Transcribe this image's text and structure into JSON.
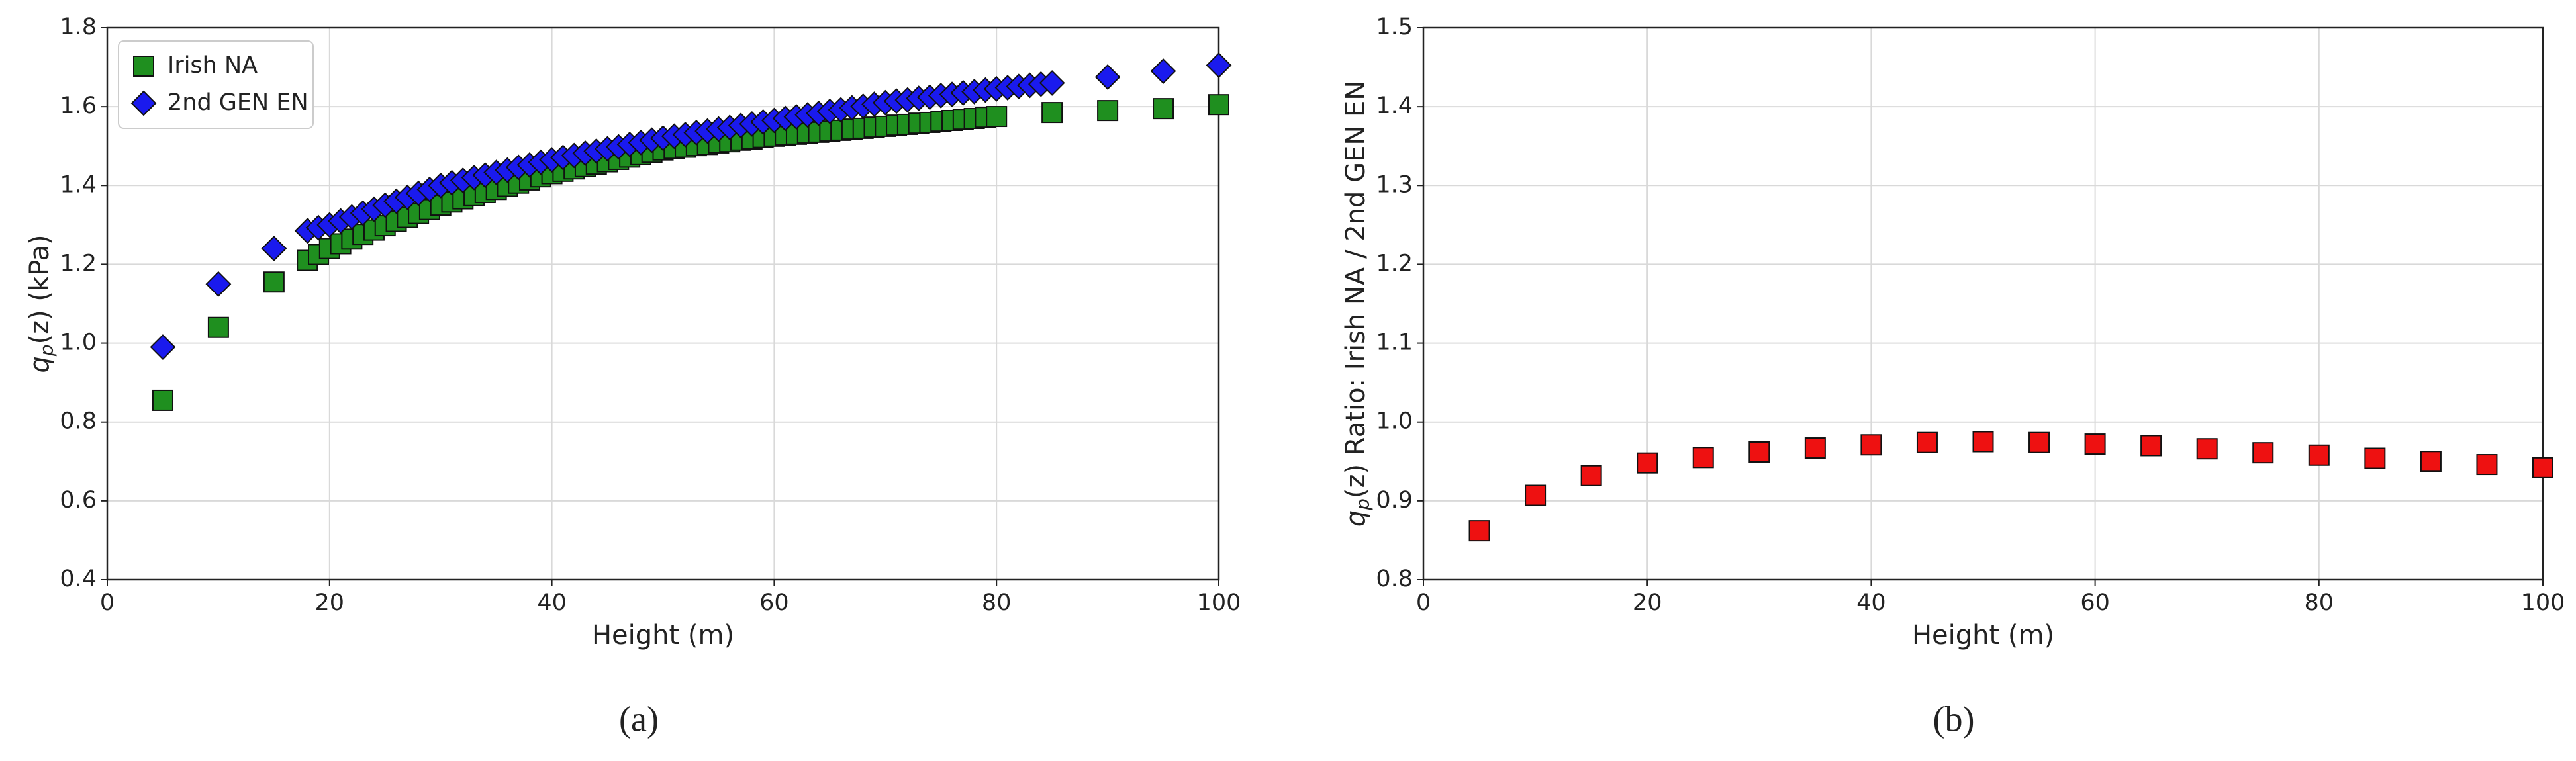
{
  "chart_data": [
    {
      "type": "scatter",
      "caption": "(a)",
      "x_label": "Height (m)",
      "y_label_symbol": "q",
      "y_label_subscript": "p",
      "y_label_rest": "(z) (kPa)",
      "xlim": [
        0,
        100
      ],
      "xticks": [
        0,
        20,
        40,
        60,
        80,
        100
      ],
      "ylim": [
        0.4,
        1.8
      ],
      "yticks": [
        0.4,
        0.6,
        0.8,
        {
          "value": 1,
          "label": "1.0"
        },
        1.2,
        1.4,
        1.6,
        1.8
      ],
      "grid": true,
      "legend": "upper left",
      "series": [
        {
          "name": "Irish NA",
          "color": "#1f8f1f",
          "marker": "square",
          "x": [
            5,
            10,
            15,
            18,
            19,
            20,
            21,
            22,
            23,
            24,
            25,
            26,
            27,
            28,
            29,
            30,
            31,
            32,
            33,
            34,
            35,
            36,
            37,
            38,
            39,
            40,
            41,
            42,
            43,
            44,
            45,
            46,
            47,
            48,
            49,
            50,
            51,
            52,
            53,
            54,
            55,
            56,
            57,
            58,
            59,
            60,
            61,
            62,
            63,
            64,
            65,
            66,
            67,
            68,
            69,
            70,
            71,
            72,
            73,
            74,
            75,
            76,
            77,
            78,
            79,
            80,
            85,
            90,
            95,
            100
          ],
          "values": [
            0.855,
            1.04,
            1.155,
            1.21,
            1.225,
            1.24,
            1.252,
            1.264,
            1.276,
            1.287,
            1.298,
            1.309,
            1.319,
            1.329,
            1.339,
            1.35,
            1.358,
            1.366,
            1.374,
            1.382,
            1.39,
            1.398,
            1.406,
            1.414,
            1.422,
            1.43,
            1.436,
            1.442,
            1.448,
            1.454,
            1.46,
            1.466,
            1.472,
            1.478,
            1.484,
            1.49,
            1.494,
            1.497,
            1.501,
            1.504,
            1.508,
            1.511,
            1.515,
            1.518,
            1.522,
            1.525,
            1.528,
            1.53,
            1.533,
            1.535,
            1.538,
            1.54,
            1.543,
            1.545,
            1.548,
            1.55,
            1.553,
            1.555,
            1.558,
            1.56,
            1.563,
            1.565,
            1.568,
            1.57,
            1.573,
            1.575,
            1.585,
            1.59,
            1.595,
            1.605
          ]
        },
        {
          "name": "2nd GEN EN",
          "color": "#1a1aee",
          "marker": "diamond",
          "x": [
            5,
            10,
            15,
            18,
            19,
            20,
            21,
            22,
            23,
            24,
            25,
            26,
            27,
            28,
            29,
            30,
            31,
            32,
            33,
            34,
            35,
            36,
            37,
            38,
            39,
            40,
            41,
            42,
            43,
            44,
            45,
            46,
            47,
            48,
            49,
            50,
            51,
            52,
            53,
            54,
            55,
            56,
            57,
            58,
            59,
            60,
            61,
            62,
            63,
            64,
            65,
            66,
            67,
            68,
            69,
            70,
            71,
            72,
            73,
            74,
            75,
            76,
            77,
            78,
            79,
            80,
            81,
            82,
            83,
            84,
            85,
            90,
            95,
            100
          ],
          "values": [
            0.99,
            1.15,
            1.24,
            1.285,
            1.293,
            1.3,
            1.31,
            1.32,
            1.33,
            1.34,
            1.35,
            1.36,
            1.37,
            1.38,
            1.39,
            1.4,
            1.407,
            1.413,
            1.42,
            1.426,
            1.433,
            1.439,
            1.446,
            1.452,
            1.459,
            1.465,
            1.471,
            1.476,
            1.482,
            1.487,
            1.493,
            1.498,
            1.504,
            1.509,
            1.515,
            1.52,
            1.525,
            1.529,
            1.534,
            1.538,
            1.543,
            1.547,
            1.552,
            1.556,
            1.561,
            1.565,
            1.57,
            1.574,
            1.579,
            1.583,
            1.588,
            1.592,
            1.597,
            1.601,
            1.606,
            1.61,
            1.614,
            1.617,
            1.621,
            1.624,
            1.628,
            1.631,
            1.635,
            1.638,
            1.642,
            1.645,
            1.648,
            1.651,
            1.654,
            1.657,
            1.66,
            1.675,
            1.69,
            1.705
          ]
        }
      ]
    },
    {
      "type": "scatter",
      "caption": "(b)",
      "x_label": "Height (m)",
      "y_label_symbol": "q",
      "y_label_subscript": "p",
      "y_label_rest": "(z) Ratio: Irish NA / 2nd GEN EN",
      "xlim": [
        0,
        100
      ],
      "xticks": [
        0,
        20,
        40,
        60,
        80,
        100
      ],
      "ylim": [
        0.8,
        1.5
      ],
      "yticks": [
        0.8,
        0.9,
        {
          "value": 1,
          "label": "1.0"
        },
        1.1,
        1.2,
        1.3,
        1.4,
        1.5
      ],
      "grid": true,
      "series": [
        {
          "color": "#ee1111",
          "marker": "square",
          "x": [
            5,
            10,
            15,
            20,
            25,
            30,
            35,
            40,
            45,
            50,
            55,
            60,
            65,
            70,
            75,
            80,
            85,
            90,
            95,
            100
          ],
          "values": [
            0.862,
            0.907,
            0.932,
            0.948,
            0.955,
            0.962,
            0.967,
            0.971,
            0.974,
            0.975,
            0.974,
            0.972,
            0.97,
            0.966,
            0.961,
            0.958,
            0.954,
            0.95,
            0.946,
            0.942
          ]
        }
      ]
    }
  ]
}
